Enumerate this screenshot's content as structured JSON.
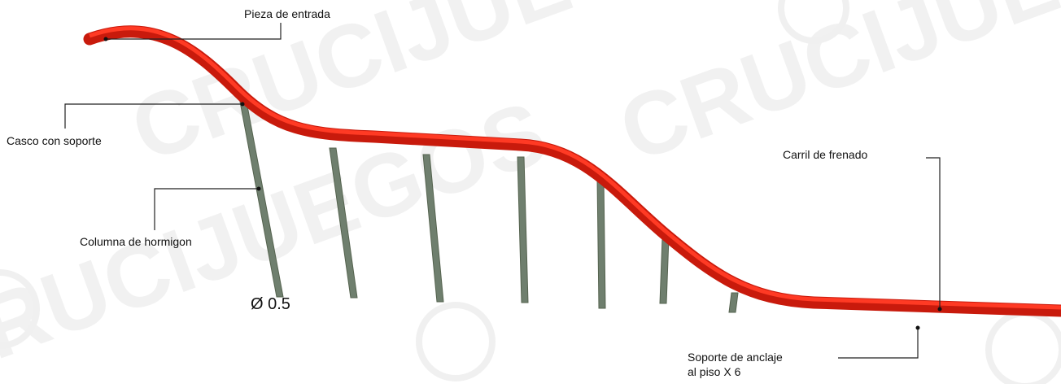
{
  "watermark": "CRUCIJUEGOS",
  "labels": {
    "entry": "Pieza de entrada",
    "helmet": "Casco con soporte",
    "column": "Columna de hormigon",
    "diameter": "Ø 0.5",
    "brake": "Carril de frenado",
    "anchor": [
      "Soporte de anclaje",
      "al piso X 6"
    ]
  }
}
